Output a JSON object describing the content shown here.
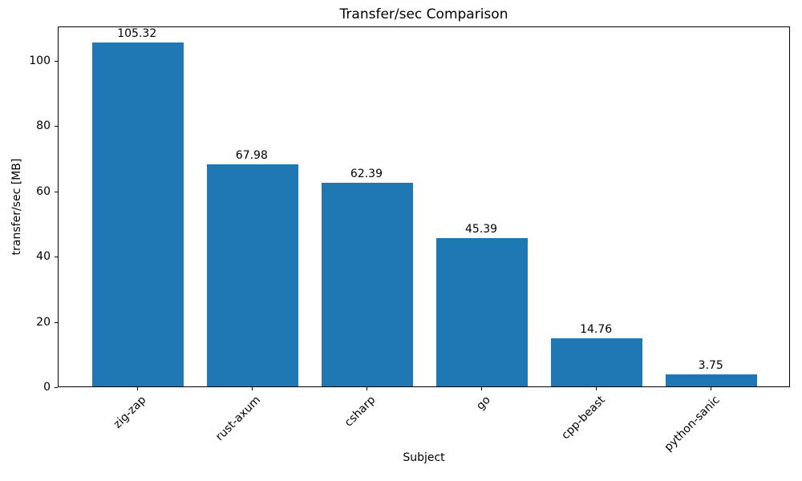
{
  "chart_data": {
    "type": "bar",
    "title": "Transfer/sec Comparison",
    "xlabel": "Subject",
    "ylabel": "transfer/sec [MB]",
    "categories": [
      "zig-zap",
      "rust-axum",
      "csharp",
      "go",
      "cpp-beast",
      "python-sanic"
    ],
    "values": [
      105.32,
      67.98,
      62.39,
      45.39,
      14.76,
      3.75
    ],
    "value_labels": [
      "105.32",
      "67.98",
      "62.39",
      "45.39",
      "14.76",
      "3.75"
    ],
    "yticks": [
      0,
      20,
      40,
      60,
      80,
      100
    ],
    "ylim": [
      0,
      110.59
    ],
    "bar_color": "#1f77b4",
    "grid": false,
    "legend": "none",
    "x_tick_label_rotation_deg": 45
  }
}
